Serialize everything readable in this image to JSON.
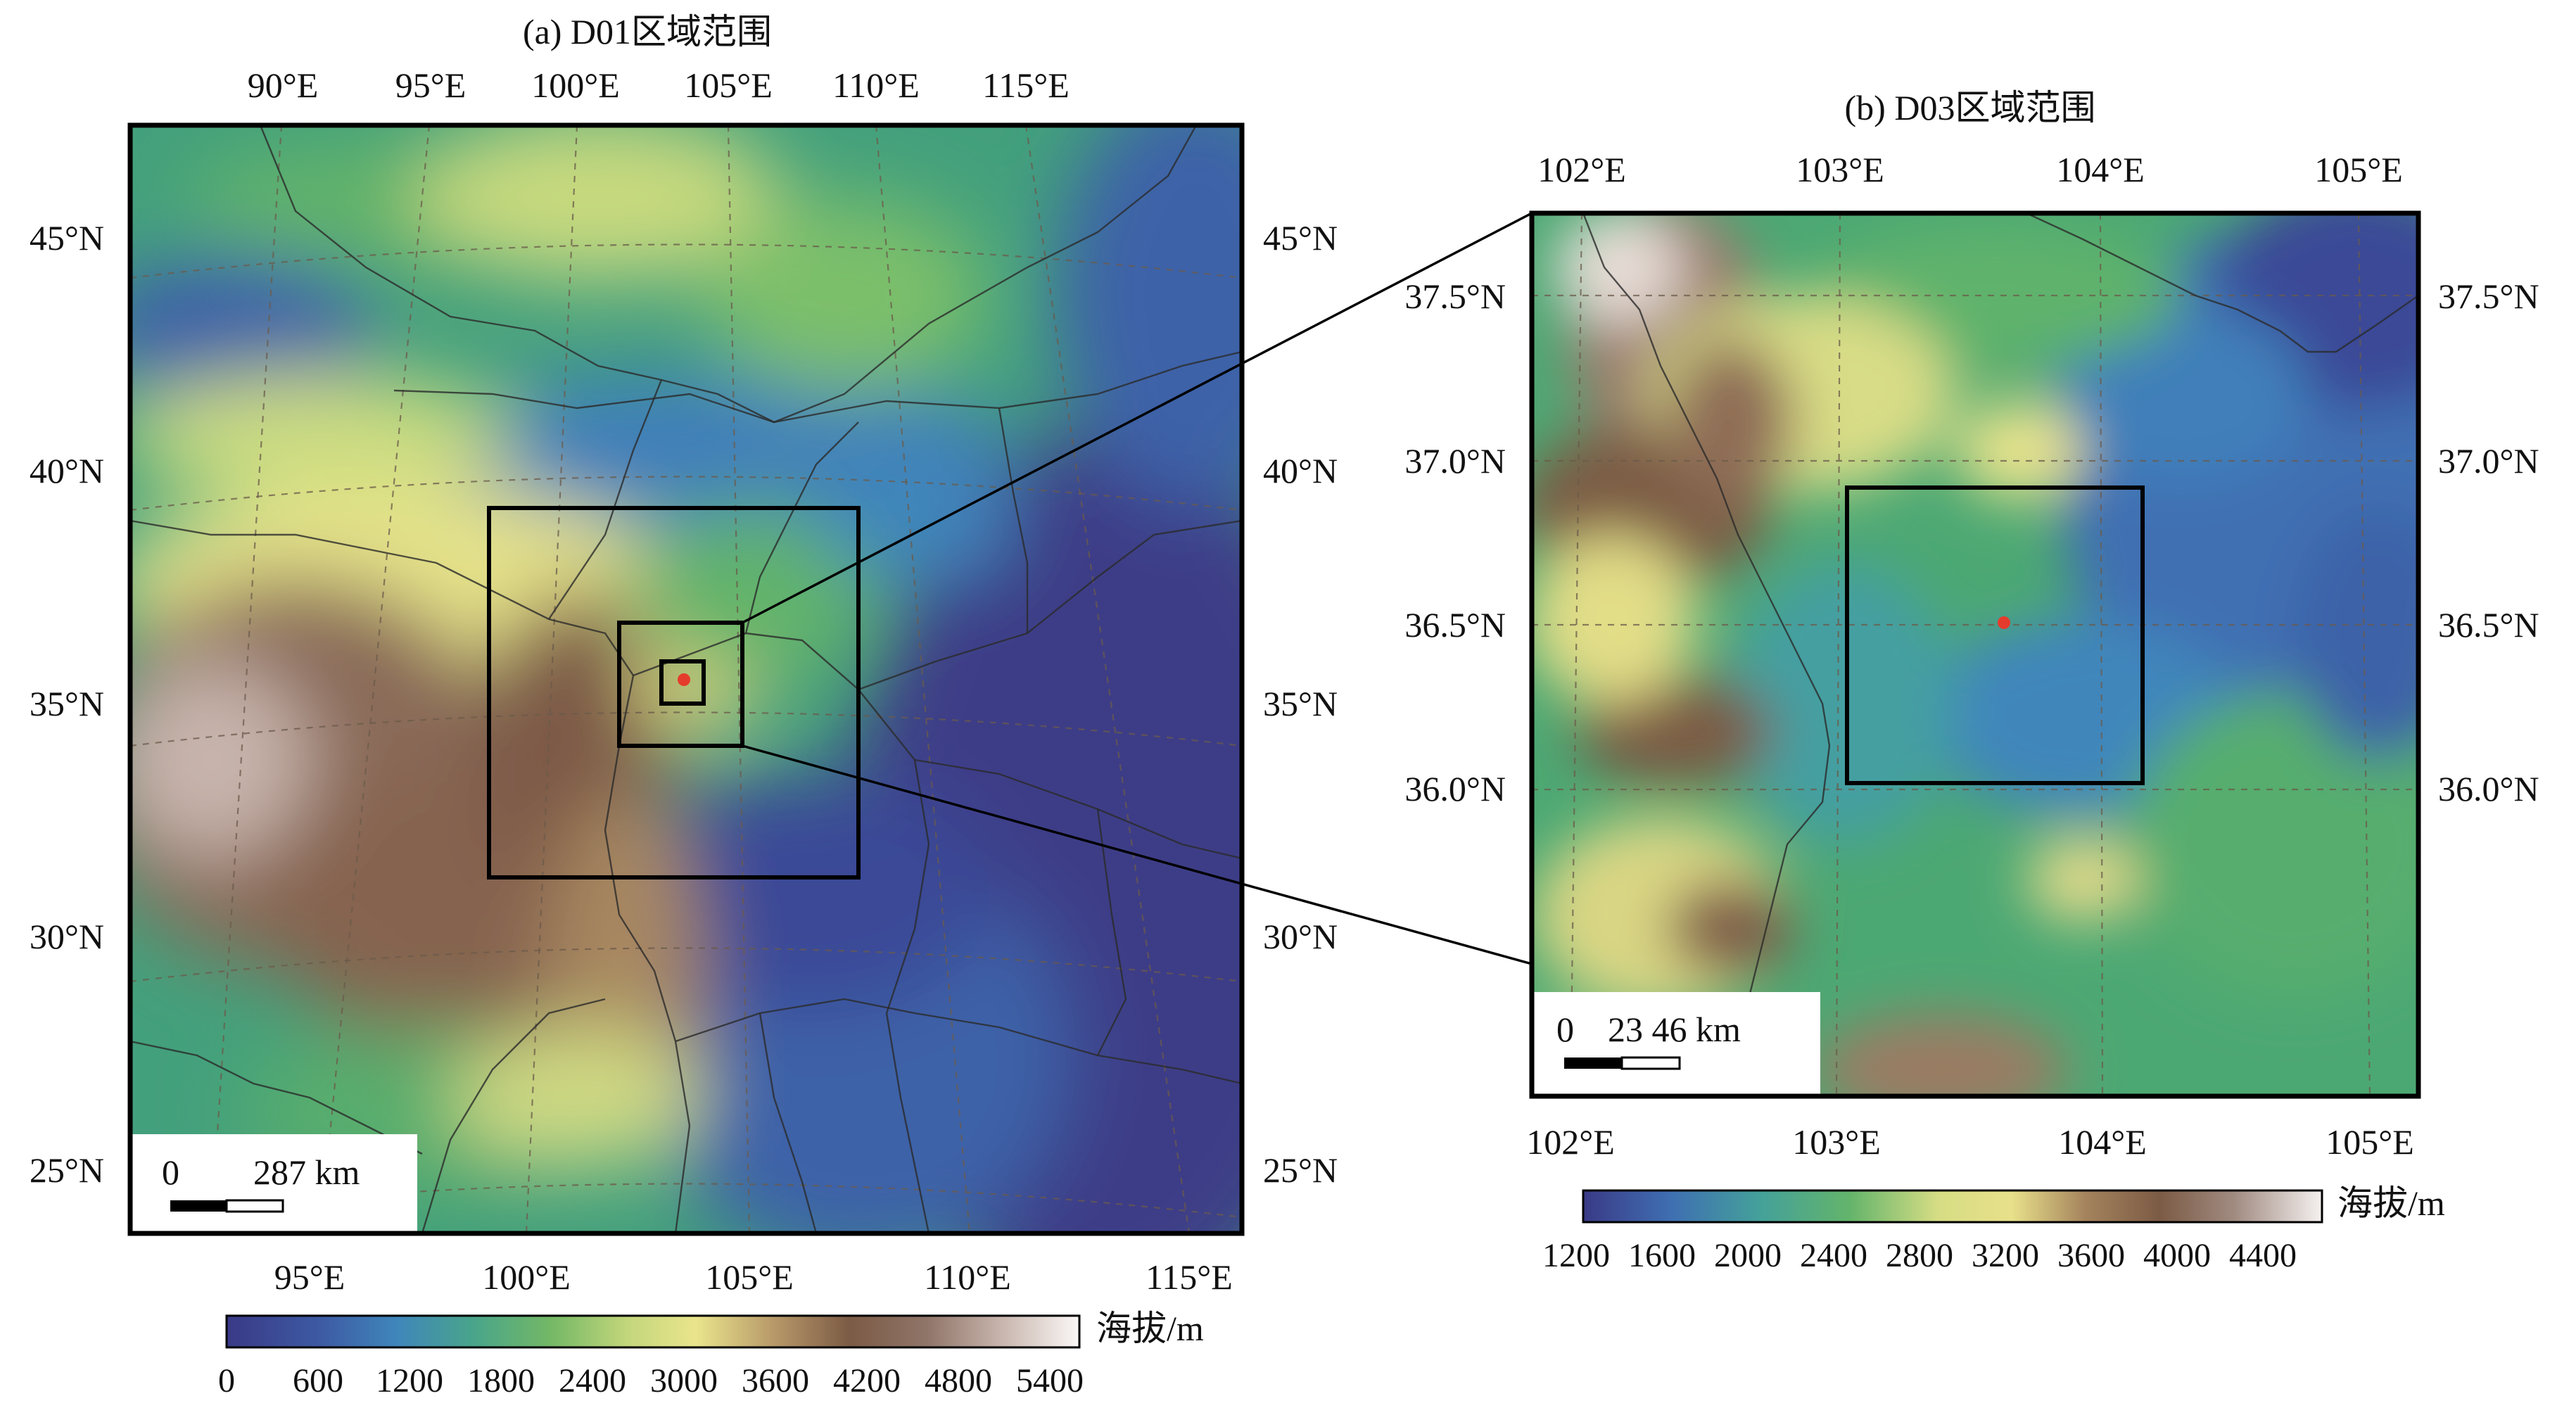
{
  "panel_a": {
    "title": "(a) D01区域范围",
    "top_lon_ticks": [
      "90°E",
      "95°E",
      "100°E",
      "105°E",
      "110°E",
      "115°E"
    ],
    "bottom_lon_ticks": [
      "95°E",
      "100°E",
      "105°E",
      "110°E",
      "115°E"
    ],
    "left_lat_ticks": [
      "45°N",
      "40°N",
      "35°N",
      "30°N",
      "25°N"
    ],
    "right_lat_ticks": [
      "45°N",
      "40°N",
      "35°N",
      "30°N",
      "25°N"
    ],
    "scale_zero": "0",
    "scale_value": "287 km",
    "colorbar_ticks": [
      "0",
      "600",
      "1200",
      "1800",
      "2400",
      "3000",
      "3600",
      "4200",
      "4800",
      "5400"
    ],
    "colorbar_label": "海拔/m",
    "nested_domains": [
      "D01",
      "D02",
      "D03"
    ]
  },
  "panel_b": {
    "title": "(b) D03区域范围",
    "top_lon_ticks": [
      "102°E",
      "103°E",
      "104°E",
      "105°E"
    ],
    "bottom_lon_ticks": [
      "102°E",
      "103°E",
      "104°E",
      "105°E"
    ],
    "left_lat_ticks": [
      "37.5°N",
      "37.0°N",
      "36.5°N",
      "36.0°N"
    ],
    "right_lat_ticks": [
      "37.5°N",
      "37.0°N",
      "36.5°N",
      "36.0°N"
    ],
    "scale_zero": "0",
    "scale_value": "23 46 km",
    "colorbar_ticks": [
      "1200",
      "1600",
      "2000",
      "2400",
      "2800",
      "3200",
      "3600",
      "4000",
      "4400"
    ],
    "colorbar_label": "海拔/m"
  },
  "colors": {
    "low": "#3d3f8c",
    "mid_blue": "#3f7fb8",
    "green": "#4faa6f",
    "yellow": "#e9e48a",
    "brown": "#7d5a45",
    "high": "#f2ecea",
    "site_marker": "#e53b2c"
  }
}
